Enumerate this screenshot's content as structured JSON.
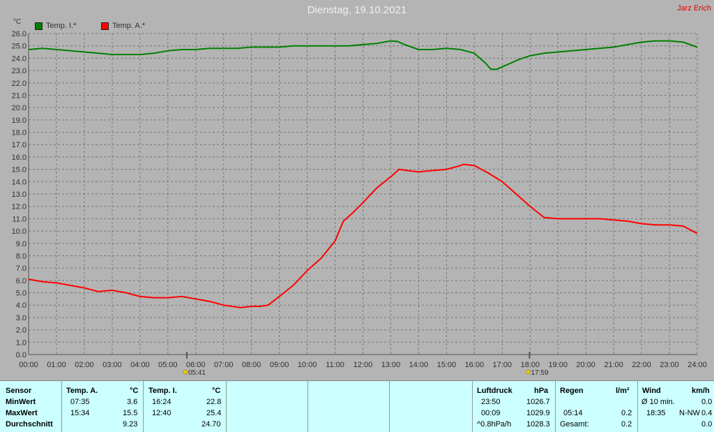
{
  "title": "Dienstag, 19.10.2021",
  "author": "Jarz Erich",
  "chart_data": {
    "type": "line",
    "ylabel": "°C",
    "ylim": [
      0,
      26
    ],
    "yticks": [
      "0.0",
      "1.0",
      "2.0",
      "3.0",
      "4.0",
      "5.0",
      "6.0",
      "7.0",
      "8.0",
      "9.0",
      "10.0",
      "11.0",
      "12.0",
      "13.0",
      "14.0",
      "15.0",
      "16.0",
      "17.0",
      "18.0",
      "19.0",
      "20.0",
      "21.0",
      "22.0",
      "23.0",
      "24.0",
      "25.0",
      "26.0"
    ],
    "xlim": [
      0,
      24
    ],
    "xticks": [
      "00:00",
      "01:00",
      "02:00",
      "03:00",
      "04:00",
      "05:00",
      "06:00",
      "07:00",
      "08:00",
      "09:00",
      "10:00",
      "11:00",
      "12:00",
      "13:00",
      "14:00",
      "15:00",
      "16:00",
      "17:00",
      "18:00",
      "19:00",
      "20:00",
      "21:00",
      "22:00",
      "23:00",
      "24:00"
    ],
    "grid": true,
    "legend_position": "top-left",
    "sunrise": {
      "x": 5.68,
      "label": "05:41"
    },
    "sunset": {
      "x": 17.98,
      "label": "17:59"
    },
    "series": [
      {
        "name": "Temp. I.*",
        "color": "#008000",
        "x": [
          0,
          0.5,
          1,
          1.5,
          2,
          2.5,
          3,
          3.5,
          4,
          4.5,
          5,
          5.5,
          6,
          6.5,
          7,
          7.5,
          8,
          8.5,
          9,
          9.5,
          10,
          10.5,
          11,
          11.5,
          12,
          12.5,
          13,
          13.25,
          13.5,
          14,
          14.5,
          15,
          15.5,
          16,
          16.4,
          16.6,
          16.8,
          17,
          17.3,
          17.6,
          18,
          18.5,
          19,
          19.5,
          20,
          20.5,
          21,
          21.5,
          22,
          22.5,
          23,
          23.5,
          24
        ],
        "values": [
          24.7,
          24.8,
          24.7,
          24.6,
          24.5,
          24.4,
          24.3,
          24.3,
          24.3,
          24.4,
          24.6,
          24.7,
          24.7,
          24.8,
          24.8,
          24.8,
          24.9,
          24.9,
          24.9,
          25.0,
          25.0,
          25.0,
          25.0,
          25.0,
          25.1,
          25.2,
          25.4,
          25.35,
          25.1,
          24.7,
          24.7,
          24.8,
          24.7,
          24.4,
          23.6,
          23.1,
          23.1,
          23.3,
          23.6,
          23.9,
          24.2,
          24.4,
          24.5,
          24.6,
          24.7,
          24.8,
          24.9,
          25.1,
          25.3,
          25.4,
          25.4,
          25.3,
          24.9
        ]
      },
      {
        "name": "Temp. A.*",
        "color": "#ff0000",
        "x": [
          0,
          0.5,
          1,
          1.5,
          2,
          2.5,
          3,
          3.5,
          4,
          4.5,
          5,
          5.5,
          6,
          6.5,
          7,
          7.3,
          7.6,
          8,
          8.3,
          8.6,
          9,
          9.5,
          10,
          10.5,
          11,
          11.3,
          11.6,
          12,
          12.5,
          13,
          13.3,
          13.6,
          14,
          14.5,
          15,
          15.5,
          15.6,
          16,
          16.5,
          17,
          17.5,
          18,
          18.5,
          19,
          19.5,
          20,
          20.5,
          21,
          21.5,
          22,
          22.5,
          23,
          23.5,
          24
        ],
        "values": [
          6.1,
          5.9,
          5.8,
          5.6,
          5.4,
          5.1,
          5.2,
          5.0,
          4.7,
          4.6,
          4.6,
          4.7,
          4.5,
          4.3,
          4.0,
          3.9,
          3.8,
          3.9,
          3.9,
          4.0,
          4.7,
          5.6,
          6.8,
          7.8,
          9.2,
          10.8,
          11.4,
          12.3,
          13.5,
          14.4,
          15.0,
          14.9,
          14.8,
          14.9,
          15.0,
          15.3,
          15.4,
          15.3,
          14.7,
          14.0,
          13.0,
          12.0,
          11.1,
          11.0,
          11.0,
          11.0,
          11.0,
          10.9,
          10.8,
          10.6,
          10.5,
          10.5,
          10.4,
          9.8
        ]
      }
    ]
  },
  "summary": {
    "headers": {
      "sensor": "Sensor",
      "temp_a": "Temp. A.",
      "temp_a_unit": "°C",
      "temp_i": "Temp. I.",
      "temp_i_unit": "°C",
      "pressure": "Luftdruck",
      "pressure_unit": "hPa",
      "rain": "Regen",
      "rain_unit": "l/m²",
      "wind": "Wind",
      "wind_unit": "km/h"
    },
    "rows": {
      "min": {
        "label": "MinWert",
        "ta_time": "07:35",
        "ta_val": "3.6",
        "ti_time": "16:24",
        "ti_val": "22.8",
        "p_time": "23:50",
        "p_val": "1026.7",
        "r_time": "",
        "r_val": "",
        "w_time": "Ø 10 min.",
        "w_val": "0.0"
      },
      "max": {
        "label": "MaxWert",
        "ta_time": "15:34",
        "ta_val": "15.5",
        "ti_time": "12:40",
        "ti_val": "25.4",
        "p_time": "00:09",
        "p_val": "1029.9",
        "r_time": "05:14",
        "r_val": "0.2",
        "w_time": "18:35",
        "w_dir": "N-NW",
        "w_val": "0.4"
      },
      "avg": {
        "label": "Durchschnitt",
        "ta_val": "9.23",
        "ti_val": "24.70",
        "p_time": "^0.8hPa/h",
        "p_val": "1028.3",
        "r_time": "Gesamt:",
        "r_val": "0.2",
        "w_val": "0.0"
      }
    }
  }
}
